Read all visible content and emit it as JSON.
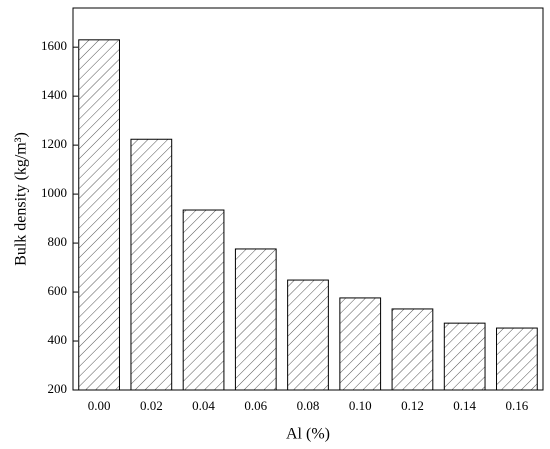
{
  "chart_data": {
    "type": "bar",
    "x_label": "Al (%)",
    "y_label": "Bulk density (kg/m³)",
    "categories": [
      "0.00",
      "0.02",
      "0.04",
      "0.06",
      "0.08",
      "0.10",
      "0.12",
      "0.14",
      "0.16"
    ],
    "values": [
      1630,
      1224,
      935,
      776,
      649,
      576,
      531,
      473,
      453
    ],
    "color": "#555555",
    "ylim": [
      200,
      1760
    ],
    "yticks": [
      200,
      400,
      600,
      800,
      1000,
      1200,
      1400,
      1600
    ],
    "grid": false
  }
}
